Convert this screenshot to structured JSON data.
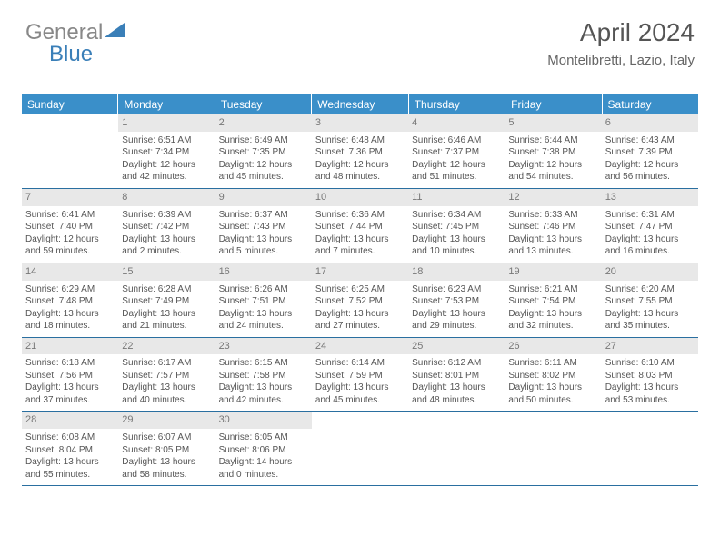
{
  "logo": {
    "part1": "General",
    "part2": "Blue"
  },
  "header": {
    "title": "April 2024",
    "location": "Montelibretti, Lazio, Italy"
  },
  "colors": {
    "header_bg": "#3a8fc9",
    "header_text": "#ffffff",
    "row_border": "#2a6fa0",
    "daynum_bg": "#e8e8e8",
    "text": "#555555",
    "logo_blue": "#3a7fb8"
  },
  "dayNames": [
    "Sunday",
    "Monday",
    "Tuesday",
    "Wednesday",
    "Thursday",
    "Friday",
    "Saturday"
  ],
  "weeks": [
    [
      {
        "blank": true
      },
      {
        "num": "1",
        "sunrise": "Sunrise: 6:51 AM",
        "sunset": "Sunset: 7:34 PM",
        "d1": "Daylight: 12 hours",
        "d2": "and 42 minutes."
      },
      {
        "num": "2",
        "sunrise": "Sunrise: 6:49 AM",
        "sunset": "Sunset: 7:35 PM",
        "d1": "Daylight: 12 hours",
        "d2": "and 45 minutes."
      },
      {
        "num": "3",
        "sunrise": "Sunrise: 6:48 AM",
        "sunset": "Sunset: 7:36 PM",
        "d1": "Daylight: 12 hours",
        "d2": "and 48 minutes."
      },
      {
        "num": "4",
        "sunrise": "Sunrise: 6:46 AM",
        "sunset": "Sunset: 7:37 PM",
        "d1": "Daylight: 12 hours",
        "d2": "and 51 minutes."
      },
      {
        "num": "5",
        "sunrise": "Sunrise: 6:44 AM",
        "sunset": "Sunset: 7:38 PM",
        "d1": "Daylight: 12 hours",
        "d2": "and 54 minutes."
      },
      {
        "num": "6",
        "sunrise": "Sunrise: 6:43 AM",
        "sunset": "Sunset: 7:39 PM",
        "d1": "Daylight: 12 hours",
        "d2": "and 56 minutes."
      }
    ],
    [
      {
        "num": "7",
        "sunrise": "Sunrise: 6:41 AM",
        "sunset": "Sunset: 7:40 PM",
        "d1": "Daylight: 12 hours",
        "d2": "and 59 minutes."
      },
      {
        "num": "8",
        "sunrise": "Sunrise: 6:39 AM",
        "sunset": "Sunset: 7:42 PM",
        "d1": "Daylight: 13 hours",
        "d2": "and 2 minutes."
      },
      {
        "num": "9",
        "sunrise": "Sunrise: 6:37 AM",
        "sunset": "Sunset: 7:43 PM",
        "d1": "Daylight: 13 hours",
        "d2": "and 5 minutes."
      },
      {
        "num": "10",
        "sunrise": "Sunrise: 6:36 AM",
        "sunset": "Sunset: 7:44 PM",
        "d1": "Daylight: 13 hours",
        "d2": "and 7 minutes."
      },
      {
        "num": "11",
        "sunrise": "Sunrise: 6:34 AM",
        "sunset": "Sunset: 7:45 PM",
        "d1": "Daylight: 13 hours",
        "d2": "and 10 minutes."
      },
      {
        "num": "12",
        "sunrise": "Sunrise: 6:33 AM",
        "sunset": "Sunset: 7:46 PM",
        "d1": "Daylight: 13 hours",
        "d2": "and 13 minutes."
      },
      {
        "num": "13",
        "sunrise": "Sunrise: 6:31 AM",
        "sunset": "Sunset: 7:47 PM",
        "d1": "Daylight: 13 hours",
        "d2": "and 16 minutes."
      }
    ],
    [
      {
        "num": "14",
        "sunrise": "Sunrise: 6:29 AM",
        "sunset": "Sunset: 7:48 PM",
        "d1": "Daylight: 13 hours",
        "d2": "and 18 minutes."
      },
      {
        "num": "15",
        "sunrise": "Sunrise: 6:28 AM",
        "sunset": "Sunset: 7:49 PM",
        "d1": "Daylight: 13 hours",
        "d2": "and 21 minutes."
      },
      {
        "num": "16",
        "sunrise": "Sunrise: 6:26 AM",
        "sunset": "Sunset: 7:51 PM",
        "d1": "Daylight: 13 hours",
        "d2": "and 24 minutes."
      },
      {
        "num": "17",
        "sunrise": "Sunrise: 6:25 AM",
        "sunset": "Sunset: 7:52 PM",
        "d1": "Daylight: 13 hours",
        "d2": "and 27 minutes."
      },
      {
        "num": "18",
        "sunrise": "Sunrise: 6:23 AM",
        "sunset": "Sunset: 7:53 PM",
        "d1": "Daylight: 13 hours",
        "d2": "and 29 minutes."
      },
      {
        "num": "19",
        "sunrise": "Sunrise: 6:21 AM",
        "sunset": "Sunset: 7:54 PM",
        "d1": "Daylight: 13 hours",
        "d2": "and 32 minutes."
      },
      {
        "num": "20",
        "sunrise": "Sunrise: 6:20 AM",
        "sunset": "Sunset: 7:55 PM",
        "d1": "Daylight: 13 hours",
        "d2": "and 35 minutes."
      }
    ],
    [
      {
        "num": "21",
        "sunrise": "Sunrise: 6:18 AM",
        "sunset": "Sunset: 7:56 PM",
        "d1": "Daylight: 13 hours",
        "d2": "and 37 minutes."
      },
      {
        "num": "22",
        "sunrise": "Sunrise: 6:17 AM",
        "sunset": "Sunset: 7:57 PM",
        "d1": "Daylight: 13 hours",
        "d2": "and 40 minutes."
      },
      {
        "num": "23",
        "sunrise": "Sunrise: 6:15 AM",
        "sunset": "Sunset: 7:58 PM",
        "d1": "Daylight: 13 hours",
        "d2": "and 42 minutes."
      },
      {
        "num": "24",
        "sunrise": "Sunrise: 6:14 AM",
        "sunset": "Sunset: 7:59 PM",
        "d1": "Daylight: 13 hours",
        "d2": "and 45 minutes."
      },
      {
        "num": "25",
        "sunrise": "Sunrise: 6:12 AM",
        "sunset": "Sunset: 8:01 PM",
        "d1": "Daylight: 13 hours",
        "d2": "and 48 minutes."
      },
      {
        "num": "26",
        "sunrise": "Sunrise: 6:11 AM",
        "sunset": "Sunset: 8:02 PM",
        "d1": "Daylight: 13 hours",
        "d2": "and 50 minutes."
      },
      {
        "num": "27",
        "sunrise": "Sunrise: 6:10 AM",
        "sunset": "Sunset: 8:03 PM",
        "d1": "Daylight: 13 hours",
        "d2": "and 53 minutes."
      }
    ],
    [
      {
        "num": "28",
        "sunrise": "Sunrise: 6:08 AM",
        "sunset": "Sunset: 8:04 PM",
        "d1": "Daylight: 13 hours",
        "d2": "and 55 minutes."
      },
      {
        "num": "29",
        "sunrise": "Sunrise: 6:07 AM",
        "sunset": "Sunset: 8:05 PM",
        "d1": "Daylight: 13 hours",
        "d2": "and 58 minutes."
      },
      {
        "num": "30",
        "sunrise": "Sunrise: 6:05 AM",
        "sunset": "Sunset: 8:06 PM",
        "d1": "Daylight: 14 hours",
        "d2": "and 0 minutes."
      },
      {
        "blank": true
      },
      {
        "blank": true
      },
      {
        "blank": true
      },
      {
        "blank": true
      }
    ]
  ]
}
